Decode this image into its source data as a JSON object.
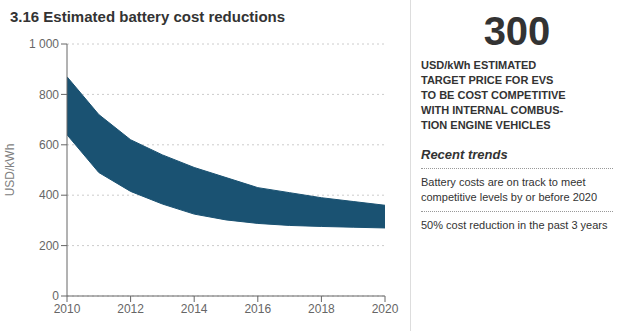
{
  "chart_data": {
    "type": "area",
    "title": "3.16 Estimated battery cost reductions",
    "ylabel": "USD/kWh",
    "x": [
      2010,
      2011,
      2012,
      2013,
      2014,
      2015,
      2016,
      2017,
      2018,
      2019,
      2020
    ],
    "upper": [
      870,
      720,
      620,
      560,
      510,
      470,
      430,
      410,
      390,
      375,
      360
    ],
    "lower": [
      640,
      490,
      415,
      365,
      325,
      302,
      288,
      280,
      276,
      273,
      270
    ],
    "color": "#1a5272",
    "xlim": [
      2010,
      2020
    ],
    "xticks": [
      2010,
      2012,
      2014,
      2016,
      2018,
      2020
    ],
    "ylim": [
      0,
      1000
    ],
    "yticks": [
      0,
      200,
      400,
      600,
      800,
      {
        "value": 1000,
        "label": "1 000"
      }
    ],
    "grid": true,
    "annotations": [
      "300",
      "USD/kWh ESTIMATED\nTARGET PRICE FOR EVS\nTO BE COST COMPETITIVE\nWITH INTERNAL COMBUS-\nTION ENGINE VEHICLES",
      "Recent trends",
      "Battery costs are on track to meet\ncompetitive levels by or before 2020",
      "50% cost reduction in the past 3 years"
    ]
  }
}
